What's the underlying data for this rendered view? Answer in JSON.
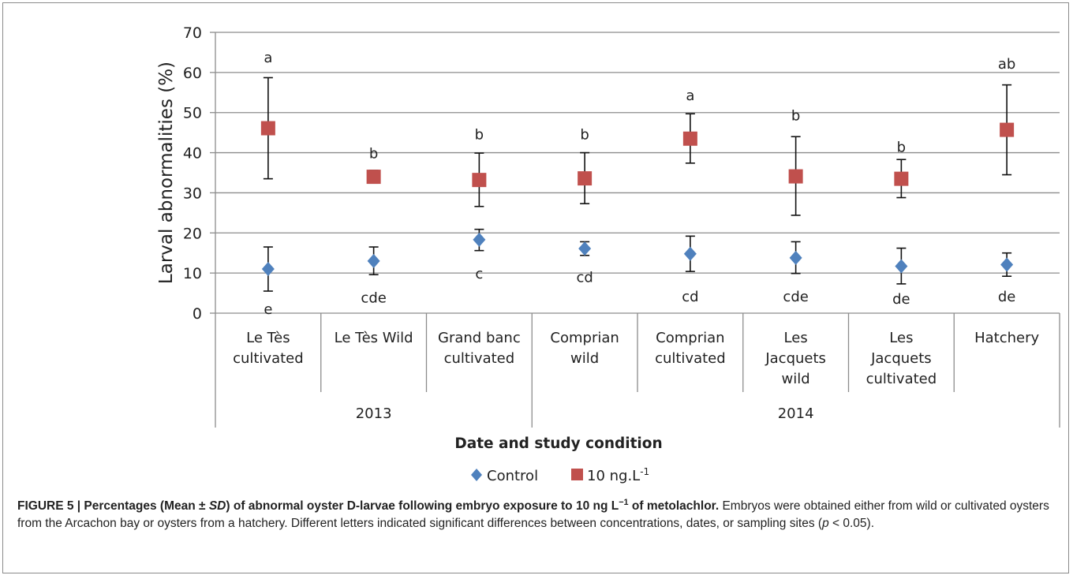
{
  "chart_data": {
    "type": "scatter",
    "ylabel": "Larval abnormalities (%)",
    "xlabel": "Date and study condition",
    "ylim": [
      0,
      70
    ],
    "yticks": [
      0,
      10,
      20,
      30,
      40,
      50,
      60,
      70
    ],
    "grid": true,
    "legend_position": "bottom",
    "categories": [
      [
        "Le Tès",
        "cultivated"
      ],
      [
        "Le Tès Wild"
      ],
      [
        "Grand banc",
        "cultivated"
      ],
      [
        "Comprian",
        "wild"
      ],
      [
        "Comprian",
        "cultivated"
      ],
      [
        "Les",
        "Jacquets",
        "wild"
      ],
      [
        "Les",
        "Jacquets",
        "cultivated"
      ],
      [
        "Hatchery"
      ]
    ],
    "groups": [
      {
        "label": "2013",
        "start": 0,
        "end": 2
      },
      {
        "label": "2014",
        "start": 3,
        "end": 7
      }
    ],
    "series": [
      {
        "name": "Control",
        "color": "#4f81bd",
        "marker": "diamond",
        "values": [
          11,
          13,
          18.3,
          16.1,
          14.8,
          13.8,
          11.7,
          12.1
        ],
        "err_low": [
          5.5,
          9.6,
          15.6,
          14.4,
          10.4,
          9.9,
          7.3,
          9.2
        ],
        "err_high": [
          16.5,
          16.5,
          20.9,
          17.8,
          19.2,
          17.8,
          16.2,
          15
        ],
        "letters": [
          "e",
          "cde",
          "c",
          "cd",
          "cd",
          "cde",
          "de",
          "de"
        ],
        "letter_y": [
          1,
          3.8,
          9.8,
          8.9,
          4.1,
          4.1,
          3.5,
          4.1
        ]
      },
      {
        "name": "10 ng.L",
        "name_sup": "-1",
        "color": "#c0504d",
        "marker": "square",
        "values": [
          46.1,
          34,
          33.2,
          33.6,
          43.5,
          34.1,
          33.5,
          45.7
        ],
        "err_low": [
          33.5,
          32.4,
          26.6,
          27.3,
          37.4,
          24.4,
          28.8,
          34.5
        ],
        "err_high": [
          58.7,
          35.6,
          39.9,
          40,
          49.7,
          44,
          38.3,
          56.9
        ],
        "letters": [
          "a",
          "b",
          "b",
          "b",
          "a",
          "b",
          "b",
          "ab"
        ],
        "letter_y": [
          63.7,
          39.8,
          44.5,
          44.5,
          54.3,
          49.3,
          41.4,
          62.1
        ]
      }
    ]
  },
  "caption": {
    "title": "FIGURE 5 | Percentages (Mean ± ",
    "title_sd": "SD",
    "title_rest": ") of abnormal oyster D-larvae following embryo exposure to 10 ng L",
    "title_sup": "−1",
    "title_end": " of metolachlor.",
    "body": " Embryos were obtained either from wild or cultivated oysters from the Arcachon bay or oysters from a hatchery. Different letters indicated significant differences between concentrations, dates, or sampling sites (",
    "p": "p",
    "body_end": " < 0.05)."
  }
}
